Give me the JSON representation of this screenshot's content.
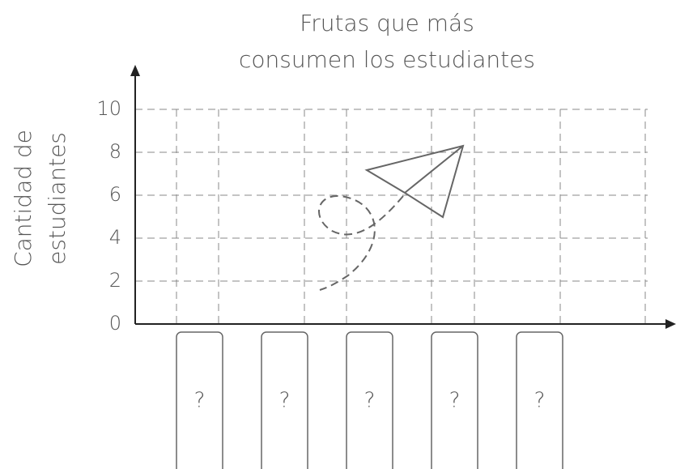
{
  "chart_data": {
    "type": "bar",
    "title": [
      "Frutas que más",
      "consumen los estudiantes"
    ],
    "ylabel": [
      "Cantidad de",
      "estudiantes"
    ],
    "categories": [
      "?",
      "?",
      "?",
      "?",
      "?"
    ],
    "ylim": [
      0,
      10
    ],
    "yticks": [
      0,
      2,
      4,
      6,
      8,
      10
    ],
    "grid": true
  }
}
